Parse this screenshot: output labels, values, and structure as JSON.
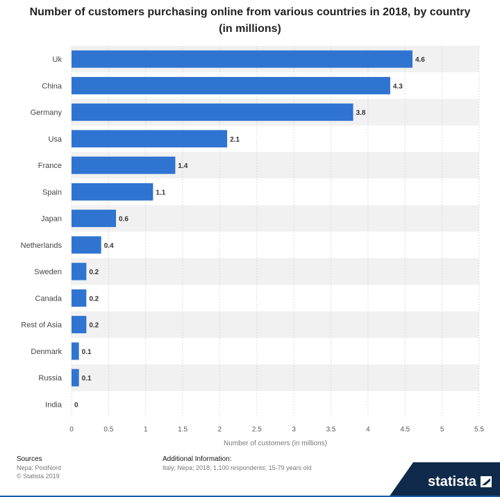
{
  "chart_data": {
    "type": "bar",
    "orientation": "horizontal",
    "title": "Number of customers purchasing online from various countries in 2018, by country (in millions)",
    "xlabel": "Number of customers (in millions)",
    "ylabel": "",
    "xlim": [
      0,
      5.5
    ],
    "xticks": [
      "0",
      "0.5",
      "1",
      "1.5",
      "2",
      "2.5",
      "3",
      "3.5",
      "4",
      "4.5",
      "5",
      "5.5"
    ],
    "categories": [
      "Uk",
      "China",
      "Germany",
      "Usa",
      "France",
      "Spain",
      "Japan",
      "Netherlands",
      "Sweden",
      "Canada",
      "Rest of Asia",
      "Denmark",
      "Russia",
      "India"
    ],
    "values": [
      4.6,
      4.3,
      3.8,
      2.1,
      1.4,
      1.1,
      0.6,
      0.4,
      0.2,
      0.2,
      0.2,
      0.1,
      0.1,
      0
    ],
    "labels": [
      "4.6",
      "4.3",
      "3.8",
      "2.1",
      "1.4",
      "1.1",
      "0.6",
      "0.4",
      "0.2",
      "0.2",
      "0.2",
      "0.1",
      "0.1",
      "0"
    ],
    "bar_color": "#2f74d0",
    "band_color": "#f1f1f1",
    "grid": true
  },
  "footer": {
    "sources_heading": "Sources",
    "sources_line1": "Nepa; PostNord",
    "sources_line2": "© Statista 2019",
    "info_heading": "Additional Information:",
    "info_text": "Italy; Nepa; 2018; 1,100 respondents; 15-79 years old"
  },
  "brand": {
    "name": "statista",
    "icon": "statista-logo-icon",
    "color": "#0f2a4a"
  }
}
